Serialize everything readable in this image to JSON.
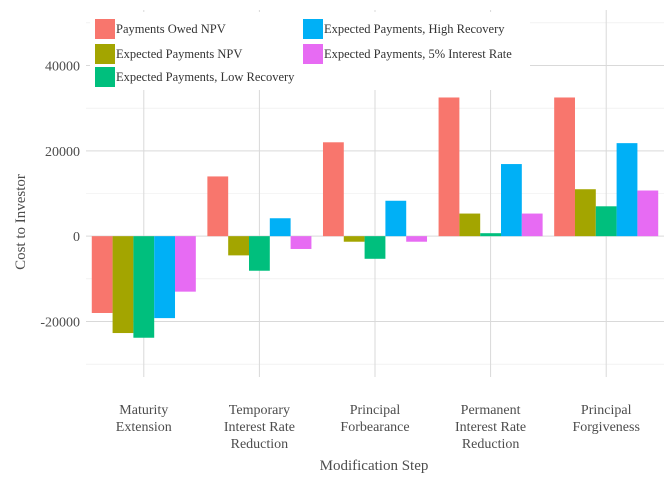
{
  "chart_data": {
    "type": "bar",
    "title": "",
    "xlabel": "Modification Step",
    "ylabel": "Cost to Investor",
    "ylim": [
      -33000,
      53000
    ],
    "yticks": [
      -20000,
      0,
      20000,
      40000
    ],
    "ytick_labels": [
      "-20000",
      "0",
      "20000",
      "40000"
    ],
    "grid": true,
    "legend_position": "top-left, inside plot",
    "categories": [
      [
        "Maturity",
        "Extension"
      ],
      [
        "Temporary",
        "Interest Rate",
        "Reduction"
      ],
      [
        "Principal",
        "Forbearance"
      ],
      [
        "Permanent",
        "Interest Rate",
        "Reduction"
      ],
      [
        "Principal",
        "Forgiveness"
      ]
    ],
    "series": [
      {
        "name": "Payments Owed NPV",
        "color": "#F8766D",
        "values": [
          -18000,
          14000,
          22000,
          32500,
          32500
        ]
      },
      {
        "name": "Expected Payments NPV",
        "color": "#A3A500",
        "values": [
          -22700,
          -4500,
          -1300,
          5300,
          11000
        ]
      },
      {
        "name": "Expected Payments, Low Recovery",
        "color": "#00BF7D",
        "values": [
          -23800,
          -8100,
          -5300,
          700,
          7000
        ]
      },
      {
        "name": "Expected Payments, High Recovery",
        "color": "#00B0F6",
        "values": [
          -19200,
          4200,
          8300,
          16900,
          21800
        ]
      },
      {
        "name": "Expected Payments, 5% Interest Rate",
        "color": "#E76BF3",
        "values": [
          -13000,
          -3000,
          -1300,
          5300,
          10700
        ]
      }
    ]
  }
}
